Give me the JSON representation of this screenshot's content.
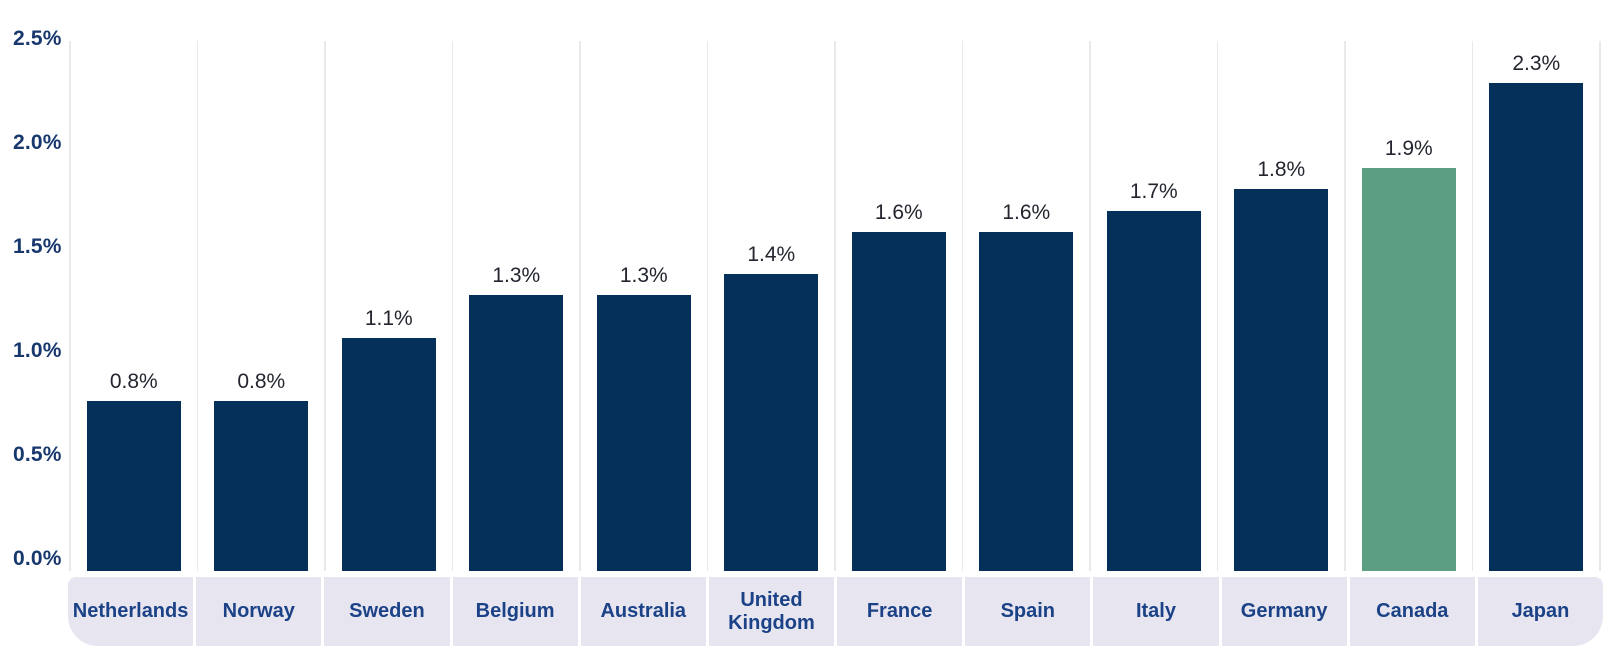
{
  "chart_data": {
    "type": "bar",
    "categories": [
      "Netherlands",
      "Norway",
      "Sweden",
      "Belgium",
      "Australia",
      "United Kingdom",
      "France",
      "Spain",
      "Italy",
      "Germany",
      "Canada",
      "Japan"
    ],
    "values": [
      0.8,
      0.8,
      1.1,
      1.3,
      1.3,
      1.4,
      1.6,
      1.6,
      1.7,
      1.8,
      1.9,
      2.3
    ],
    "labels": [
      "0.8%",
      "0.8%",
      "1.1%",
      "1.3%",
      "1.3%",
      "1.4%",
      "1.6%",
      "1.6%",
      "1.7%",
      "1.8%",
      "1.9%",
      "2.3%"
    ],
    "y_ticks": [
      "2.5%",
      "2.0%",
      "1.5%",
      "1.0%",
      "0.5%",
      "0.0%"
    ],
    "ylim": [
      0,
      2.5
    ],
    "highlight_index": 10,
    "bar_color": "#04305a",
    "highlight_color": "#5c9e82",
    "title": "",
    "xlabel": "",
    "ylabel": "",
    "grid": "vertical-only",
    "legend": "none"
  },
  "colors": {
    "y_tick_text": "#17376d",
    "category_text": "#1b4287",
    "value_text": "#23252f",
    "band_background": "#e7e6f0",
    "gridline": "#e9e9ec",
    "background": "#ffffff"
  }
}
